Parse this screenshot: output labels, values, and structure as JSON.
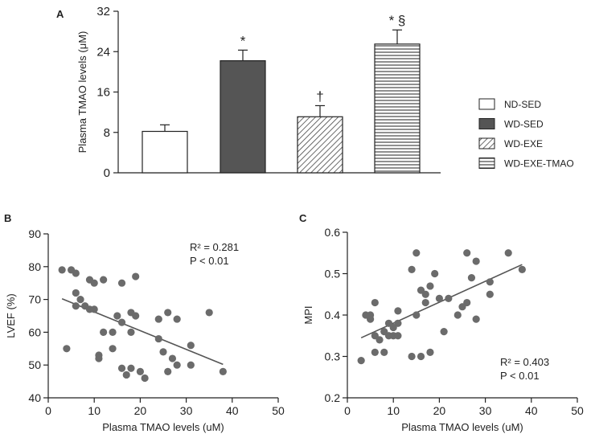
{
  "chart_data": [
    {
      "panel": "A",
      "type": "bar",
      "ylabel": "Plasma TMAO levels (μM)",
      "ylim": [
        0,
        32
      ],
      "yticks": [
        "0",
        "8",
        "16",
        "24",
        "32"
      ],
      "categories": [
        "ND-SED",
        "WD-SED",
        "WD-EXE",
        "WD-EXE-TMAO"
      ],
      "values": [
        8.2,
        22.2,
        11.1,
        25.5
      ],
      "errors": [
        1.3,
        2.1,
        2.2,
        2.8
      ],
      "annotations": [
        "",
        "*",
        "†",
        "* §"
      ],
      "fills": [
        "white",
        "dark",
        "diagonal",
        "horizontal"
      ],
      "legend": [
        "ND-SED",
        "WD-SED",
        "WD-EXE",
        "WD-EXE-TMAO"
      ]
    },
    {
      "panel": "B",
      "type": "scatter",
      "xlabel": "Plasma TMAO levels (uM)",
      "ylabel": "LVEF (%)",
      "xlim": [
        0,
        50
      ],
      "ylim": [
        40,
        90
      ],
      "xticks": [
        "0",
        "10",
        "20",
        "30",
        "40",
        "50"
      ],
      "yticks": [
        "40",
        "50",
        "60",
        "70",
        "80",
        "90"
      ],
      "r2_text": "R² = 0.281",
      "p_text": "P < 0.01",
      "fit": {
        "x": [
          3,
          38
        ],
        "y": [
          70.2,
          50.2
        ]
      },
      "points": [
        [
          3,
          79
        ],
        [
          4,
          55
        ],
        [
          5,
          79
        ],
        [
          6,
          78
        ],
        [
          6,
          72
        ],
        [
          6,
          68
        ],
        [
          7,
          70
        ],
        [
          8,
          68
        ],
        [
          9,
          76
        ],
        [
          9,
          67
        ],
        [
          10,
          75
        ],
        [
          10,
          67
        ],
        [
          11,
          53
        ],
        [
          12,
          60
        ],
        [
          11,
          52
        ],
        [
          12,
          76
        ],
        [
          14,
          55
        ],
        [
          14,
          60
        ],
        [
          15,
          65
        ],
        [
          16,
          75
        ],
        [
          16,
          63
        ],
        [
          16,
          49
        ],
        [
          17,
          47
        ],
        [
          18,
          66
        ],
        [
          18,
          60
        ],
        [
          18,
          49
        ],
        [
          19,
          77
        ],
        [
          19,
          65
        ],
        [
          20,
          48
        ],
        [
          21,
          46
        ],
        [
          24,
          64
        ],
        [
          24,
          58
        ],
        [
          25,
          54
        ],
        [
          26,
          66
        ],
        [
          26,
          48
        ],
        [
          27,
          52
        ],
        [
          28,
          64
        ],
        [
          28,
          50
        ],
        [
          31,
          56
        ],
        [
          31,
          50
        ],
        [
          35,
          66
        ],
        [
          38,
          48
        ]
      ]
    },
    {
      "panel": "C",
      "type": "scatter",
      "xlabel": "Plasma TMAO levels (uM)",
      "ylabel": "MPI",
      "xlim": [
        0,
        50
      ],
      "ylim": [
        0.2,
        0.6
      ],
      "xticks": [
        "0",
        "10",
        "20",
        "30",
        "40",
        "50"
      ],
      "yticks": [
        "0.2",
        "0.3",
        "0.4",
        "0.5",
        "0.6"
      ],
      "r2_text": "R² = 0.403",
      "p_text": "P < 0.01",
      "fit": {
        "x": [
          3,
          38
        ],
        "y": [
          0.345,
          0.522
        ]
      },
      "points": [
        [
          3,
          0.29
        ],
        [
          4,
          0.4
        ],
        [
          5,
          0.39
        ],
        [
          5,
          0.4
        ],
        [
          6,
          0.43
        ],
        [
          6,
          0.35
        ],
        [
          6,
          0.31
        ],
        [
          7,
          0.34
        ],
        [
          8,
          0.36
        ],
        [
          8,
          0.31
        ],
        [
          9,
          0.38
        ],
        [
          9,
          0.35
        ],
        [
          10,
          0.37
        ],
        [
          10,
          0.35
        ],
        [
          11,
          0.41
        ],
        [
          11,
          0.35
        ],
        [
          11,
          0.38
        ],
        [
          14,
          0.51
        ],
        [
          14,
          0.3
        ],
        [
          15,
          0.55
        ],
        [
          15,
          0.4
        ],
        [
          16,
          0.46
        ],
        [
          16,
          0.3
        ],
        [
          17,
          0.43
        ],
        [
          17,
          0.45
        ],
        [
          18,
          0.47
        ],
        [
          18,
          0.31
        ],
        [
          19,
          0.5
        ],
        [
          20,
          0.44
        ],
        [
          21,
          0.36
        ],
        [
          22,
          0.44
        ],
        [
          24,
          0.4
        ],
        [
          25,
          0.42
        ],
        [
          26,
          0.43
        ],
        [
          26,
          0.55
        ],
        [
          27,
          0.49
        ],
        [
          28,
          0.53
        ],
        [
          28,
          0.39
        ],
        [
          31,
          0.48
        ],
        [
          31,
          0.45
        ],
        [
          35,
          0.55
        ],
        [
          38,
          0.51
        ]
      ]
    }
  ],
  "panel_labels": [
    "A",
    "B",
    "C"
  ]
}
